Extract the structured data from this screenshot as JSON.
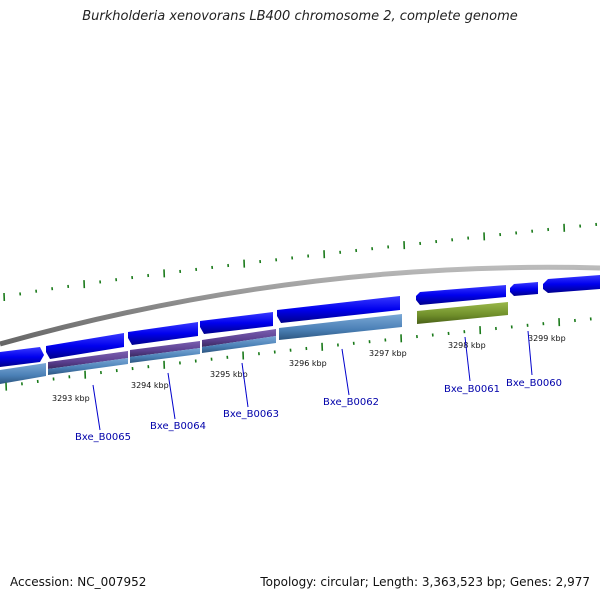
{
  "title": "Burkholderia xenovorans LB400 chromosome 2, complete genome",
  "footer": {
    "accession": "Accession: NC_007952",
    "summary": "Topology: circular; Length: 3,363,523 bp; Genes: 2,977"
  },
  "ticks": [
    "3293 kbp",
    "3294 kbp",
    "3295 kbp",
    "3296 kbp",
    "3297 kbp",
    "3298 kbp",
    "3299 kbp"
  ],
  "genes": [
    "Bxe_B0065",
    "Bxe_B0064",
    "Bxe_B0063",
    "Bxe_B0062",
    "Bxe_B0061",
    "Bxe_B0060"
  ],
  "colors": {
    "backbone": "#888888",
    "forward_cds": "#0000ee",
    "gene_blue": "#4a7fb5",
    "gene_purple": "#5a3f8f",
    "gene_green": "#6f8f2a",
    "tick_green": "#1a7a1a",
    "label_blue": "#0000aa"
  }
}
